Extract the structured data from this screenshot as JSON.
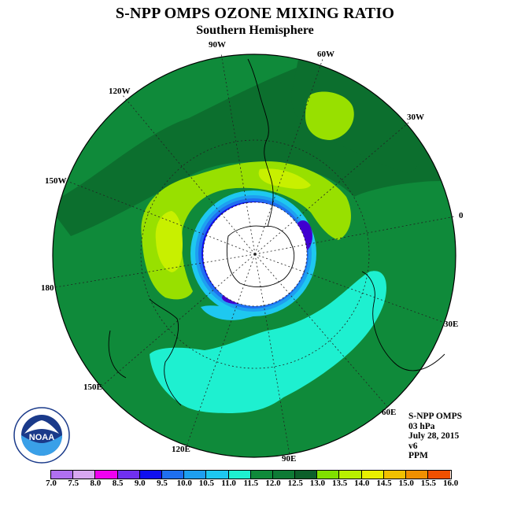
{
  "title": "S-NPP OMPS OZONE MIXING RATIO",
  "subtitle": "Southern Hemisphere",
  "longitude_labels": {
    "lon_90w": "90W",
    "lon_60w": "60W",
    "lon_120w": "120W",
    "lon_30w": "30W",
    "lon_150w": "150W",
    "lon_0": "0",
    "lon_180": "180",
    "lon_30e": "30E",
    "lon_150e": "150E",
    "lon_60e": "60E",
    "lon_120e": "120E",
    "lon_90e": "90E"
  },
  "info": {
    "instrument": "S-NPP OMPS",
    "level": "03 hPa",
    "date": "July 28, 2015",
    "version": "v6",
    "units": "PPM"
  },
  "logo": {
    "text": "NOAA",
    "icon": "noaa-logo"
  },
  "colorbar": {
    "ticks": [
      "7.0",
      "7.5",
      "8.0",
      "8.5",
      "9.0",
      "9.5",
      "10.0",
      "10.5",
      "11.0",
      "11.5",
      "12.0",
      "12.5",
      "13.0",
      "13.5",
      "14.0",
      "14.5",
      "15.0",
      "15.5",
      "16.0"
    ],
    "colors": [
      "#b070f0",
      "#d8a8f0",
      "#f000f0",
      "#7030f0",
      "#1010f0",
      "#1f6ff0",
      "#1e9ff0",
      "#1ec8f0",
      "#1ef0d0",
      "#0f8a3a",
      "#0e7a35",
      "#0c5f2a",
      "#80e000",
      "#b8f000",
      "#e8f000",
      "#f0c000",
      "#f09000",
      "#f05000",
      "#e80000",
      "#a00000",
      "#7a4a2a"
    ]
  }
}
